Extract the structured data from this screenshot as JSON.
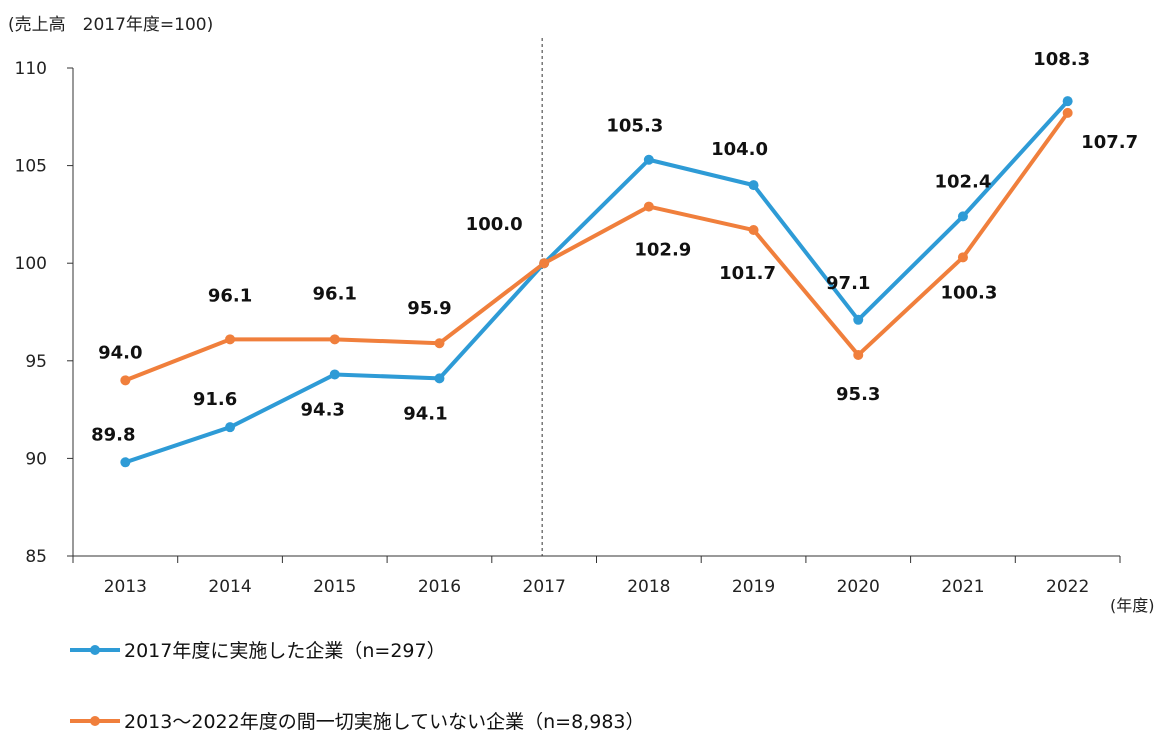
{
  "chart_data": {
    "type": "line",
    "ylabel": "(売上高　2017年度=100)",
    "xlabel": "(年度)",
    "categories": [
      "2013",
      "2014",
      "2015",
      "2016",
      "2017",
      "2018",
      "2019",
      "2020",
      "2021",
      "2022"
    ],
    "ylim": [
      85,
      110
    ],
    "yticks": [
      "85",
      "90",
      "95",
      "100",
      "105",
      "110"
    ],
    "grid": false,
    "reference_line": "2017",
    "legend_position": "bottom-left",
    "series": [
      {
        "name": "2017年度に実施した企業（n=297）",
        "color": "#2E9BD6",
        "values": [
          89.8,
          91.6,
          94.3,
          94.1,
          100.0,
          105.3,
          104.0,
          97.1,
          102.4,
          108.3
        ],
        "labels": [
          "89.8",
          "91.6",
          "94.3",
          "94.1",
          "100.0",
          "105.3",
          "104.0",
          "97.1",
          "102.4",
          "108.3"
        ]
      },
      {
        "name": "2013～2022年度の間一切実施していない企業（n=8,983）",
        "color": "#F07F3C",
        "values": [
          94.0,
          96.1,
          96.1,
          95.9,
          100.0,
          102.9,
          101.7,
          95.3,
          100.3,
          107.7
        ],
        "labels": [
          "94.0",
          "96.1",
          "96.1",
          "95.9",
          "",
          "102.9",
          "101.7",
          "95.3",
          "100.3",
          "107.7"
        ]
      }
    ]
  }
}
